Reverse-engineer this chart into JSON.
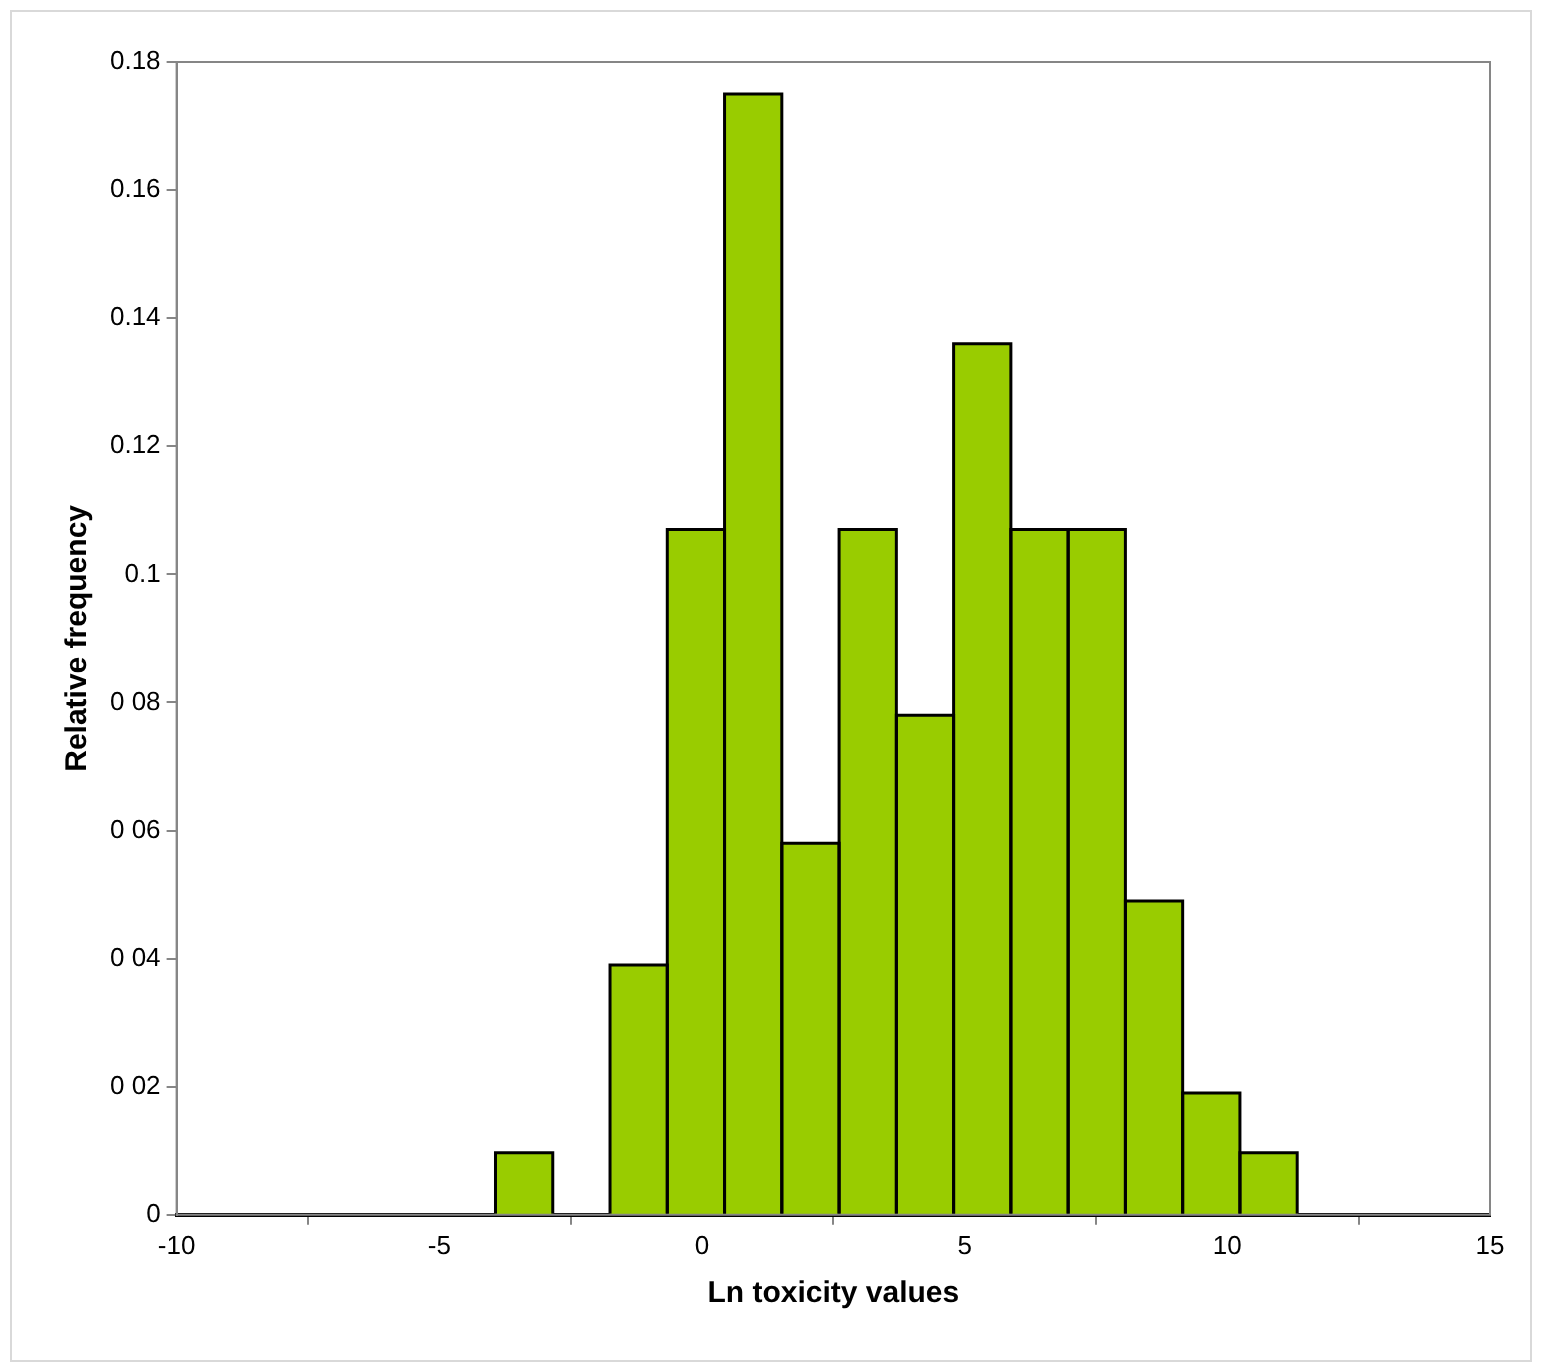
{
  "chart_data": {
    "type": "histogram",
    "xlabel": "Ln toxicity values",
    "ylabel": "Relative frequency",
    "bins": [
      -3.93,
      -2.84,
      -1.75,
      -0.66,
      0.43,
      1.52,
      2.61,
      3.7,
      4.79,
      5.88,
      6.97,
      8.06,
      9.15,
      10.24,
      11.33
    ],
    "values": [
      0.0097,
      0,
      0.039,
      0.107,
      0.175,
      0.058,
      0.107,
      0.078,
      0.136,
      0.107,
      0.107,
      0.049,
      0.019,
      0.0097
    ],
    "color": "#99cc00",
    "xlim": [
      -10,
      15
    ],
    "xticks": [
      -10,
      -5,
      0,
      5,
      10,
      15
    ],
    "ylim": [
      0,
      0.18
    ],
    "yticks": [
      0,
      {
        "value": 0.02,
        "label": "0 02"
      },
      {
        "value": 0.04,
        "label": "0 04"
      },
      {
        "value": 0.06,
        "label": "0 06"
      },
      {
        "value": 0.08,
        "label": "0 08"
      },
      0.1,
      0.12,
      0.14,
      0.16,
      0.18
    ],
    "grid": false,
    "legend": false
  }
}
